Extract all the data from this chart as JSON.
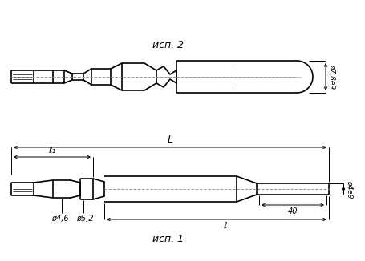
{
  "bg_color": "#ffffff",
  "line_color": "#000000",
  "fig_width": 4.56,
  "fig_height": 3.26,
  "dpi": 100,
  "labels": {
    "l1": "ℓ₁",
    "L": "L",
    "l": "ℓ",
    "d46": "ø4,6",
    "d52": "ø5,2",
    "d4e9": "ø4e9",
    "d78e9": "ø7,8e9",
    "dim40": "40",
    "isp1": "исп. 1",
    "isp2": "исп. 2"
  }
}
